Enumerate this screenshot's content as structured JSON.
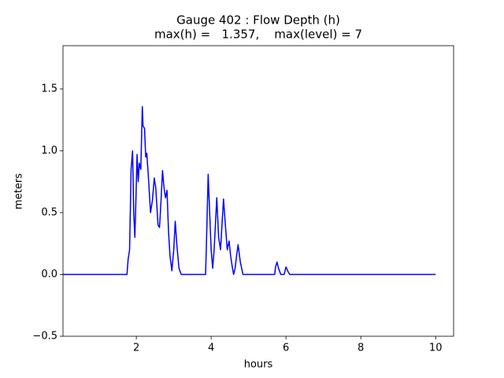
{
  "chart_data": {
    "type": "line",
    "title": "Gauge 402 : Flow Depth (h)",
    "subtitle": "max(h) =   1.357,    max(level) = 7",
    "x_label": "hours",
    "y_label": "meters",
    "xlim": [
      0.04,
      10.48
    ],
    "ylim": [
      -0.5,
      1.85
    ],
    "xticks": [
      2,
      4,
      6,
      8,
      10
    ],
    "yticks": [
      {
        "value": -0.5,
        "label": "−0.5"
      },
      {
        "value": 0,
        "label": "0.0"
      },
      0.5,
      {
        "value": 1,
        "label": "1.0"
      },
      1.5
    ],
    "series": [
      {
        "color": "#0000ff",
        "x": [
          0.04,
          1.75,
          1.78,
          1.82,
          1.86,
          1.9,
          1.93,
          1.96,
          1.98,
          2.02,
          2.05,
          2.08,
          2.12,
          2.16,
          2.18,
          2.22,
          2.25,
          2.28,
          2.32,
          2.38,
          2.43,
          2.48,
          2.52,
          2.58,
          2.62,
          2.66,
          2.7,
          2.74,
          2.78,
          2.82,
          2.86,
          2.9,
          2.95,
          3.0,
          3.04,
          3.08,
          3.14,
          3.2,
          3.85,
          3.87,
          3.92,
          3.96,
          4.0,
          4.04,
          4.08,
          4.15,
          4.2,
          4.25,
          4.33,
          4.38,
          4.43,
          4.48,
          4.52,
          4.57,
          4.6,
          4.64,
          4.68,
          4.72,
          4.78,
          4.85,
          5.7,
          5.72,
          5.76,
          5.8,
          5.86,
          5.95,
          6.0,
          6.06,
          6.1,
          10
        ],
        "values": [
          0,
          0,
          0.12,
          0.2,
          0.85,
          1.0,
          0.5,
          0.3,
          0.5,
          0.97,
          0.75,
          0.9,
          0.85,
          1.357,
          1.2,
          1.18,
          0.95,
          0.98,
          0.8,
          0.5,
          0.6,
          0.78,
          0.7,
          0.4,
          0.38,
          0.6,
          0.84,
          0.7,
          0.62,
          0.68,
          0.35,
          0.15,
          0.03,
          0.2,
          0.43,
          0.25,
          0.05,
          0,
          0,
          0.2,
          0.81,
          0.5,
          0.2,
          0.05,
          0.2,
          0.62,
          0.3,
          0.2,
          0.61,
          0.4,
          0.2,
          0.27,
          0.15,
          0.05,
          0,
          0.05,
          0.15,
          0.24,
          0.1,
          0,
          0,
          0.06,
          0.1,
          0.05,
          0,
          0,
          0.06,
          0.02,
          0,
          0
        ]
      }
    ]
  }
}
